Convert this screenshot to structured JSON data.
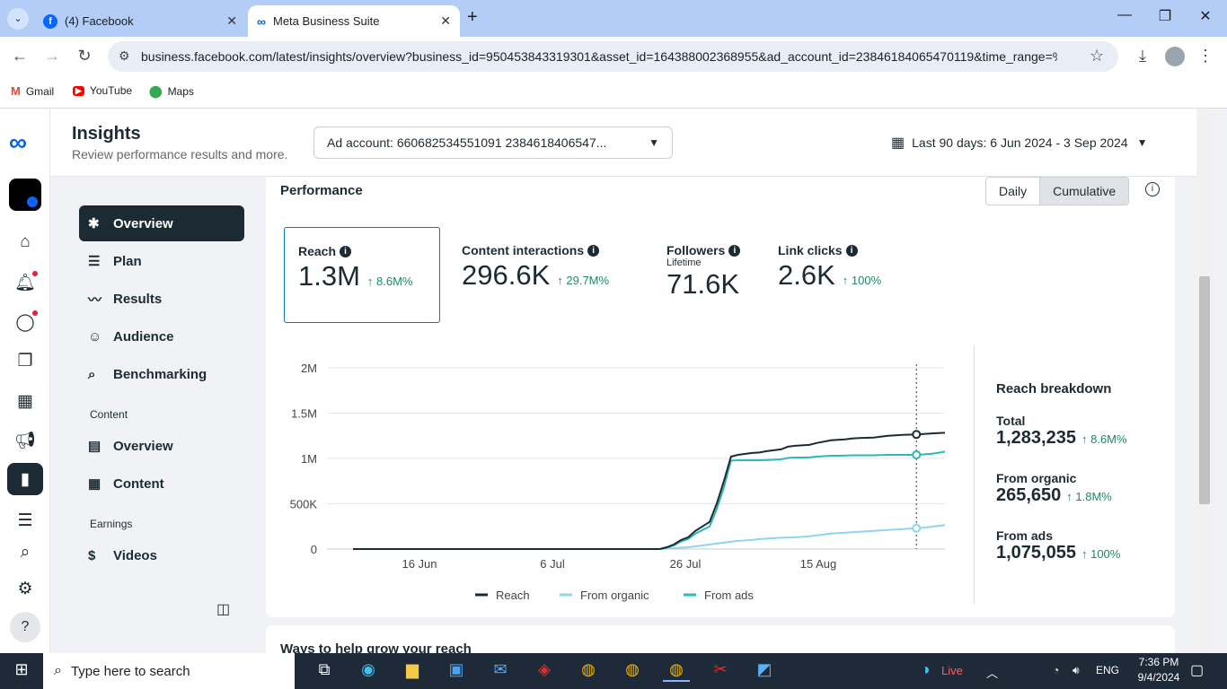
{
  "browser": {
    "tabs": [
      {
        "title": "(4) Facebook",
        "icon": "facebook-icon"
      },
      {
        "title": "Meta Business Suite",
        "icon": "meta-icon"
      }
    ],
    "url": "business.facebook.com/latest/insights/overview?business_id=950453843319301&asset_id=164388002368955&ad_account_id=23846184065470119&time_range=%25...",
    "bookmarks": [
      "Gmail",
      "YouTube",
      "Maps"
    ]
  },
  "header": {
    "title": "Insights",
    "subtitle": "Review performance results and more.",
    "ad_account": "Ad account: 660682534551091 2384618406547...",
    "date_range": "Last 90 days: 6 Jun 2024 - 3 Sep 2024"
  },
  "sidenav": {
    "items": [
      {
        "label": "Overview",
        "icon": "overview-icon"
      },
      {
        "label": "Plan",
        "icon": "plan-icon"
      },
      {
        "label": "Results",
        "icon": "results-icon"
      },
      {
        "label": "Audience",
        "icon": "audience-icon"
      },
      {
        "label": "Benchmarking",
        "icon": "benchmarking-icon"
      }
    ],
    "content_section": "Content",
    "content_items": [
      {
        "label": "Overview",
        "icon": "content-overview-icon"
      },
      {
        "label": "Content",
        "icon": "content-table-icon"
      }
    ],
    "earnings_section": "Earnings",
    "earnings_items": [
      {
        "label": "Videos",
        "icon": "dollar-icon"
      }
    ]
  },
  "performance": {
    "title": "Performance",
    "toggle": [
      "Daily",
      "Cumulative"
    ],
    "selected_toggle": "Cumulative",
    "metrics": [
      {
        "label": "Reach",
        "value": "1.3M",
        "delta": "↑ 8.6M%",
        "sub": ""
      },
      {
        "label": "Content interactions",
        "value": "296.6K",
        "delta": "↑ 29.7M%",
        "sub": ""
      },
      {
        "label": "Followers",
        "value": "71.6K",
        "delta": "",
        "sub": "Lifetime"
      },
      {
        "label": "Link clicks",
        "value": "2.6K",
        "delta": "↑ 100%",
        "sub": ""
      }
    ]
  },
  "chart_data": {
    "type": "line",
    "yticks": [
      "2M",
      "1.5M",
      "1M",
      "500K",
      "0"
    ],
    "ytick_values": [
      2000000,
      1500000,
      1000000,
      500000,
      0
    ],
    "xticks": [
      "16 Jun",
      "6 Jul",
      "26 Jul",
      "15 Aug"
    ],
    "ylim": [
      0,
      2000000
    ],
    "legend": [
      "Reach",
      "From organic",
      "From ads"
    ],
    "legend_placement": "bottom",
    "series": [
      {
        "name": "Reach",
        "color": "#1c2b33",
        "values": [
          0,
          0,
          0,
          0,
          0,
          0,
          0,
          0,
          0,
          0,
          0,
          0,
          0,
          0,
          0,
          0,
          0,
          0,
          0,
          0,
          0,
          0,
          0,
          0,
          0,
          0,
          0,
          0,
          0,
          0,
          0,
          0,
          0,
          0,
          0,
          0,
          0,
          0,
          0,
          0,
          0,
          0,
          0,
          0,
          20000,
          50000,
          100000,
          130000,
          200000,
          250000,
          300000,
          500000,
          750000,
          1020000,
          1040000,
          1050000,
          1060000,
          1065000,
          1080000,
          1090000,
          1100000,
          1130000,
          1140000,
          1145000,
          1150000,
          1170000,
          1185000,
          1200000,
          1205000,
          1210000,
          1220000,
          1225000,
          1228000,
          1230000,
          1240000,
          1250000,
          1255000,
          1260000,
          1262000,
          1265000,
          1270000,
          1275000,
          1280000,
          1283235
        ]
      },
      {
        "name": "From organic",
        "color": "#8dd6ee",
        "values": [
          0,
          0,
          0,
          0,
          0,
          0,
          0,
          0,
          0,
          0,
          0,
          0,
          0,
          0,
          0,
          0,
          0,
          0,
          0,
          0,
          0,
          0,
          0,
          0,
          0,
          0,
          0,
          0,
          0,
          0,
          0,
          0,
          0,
          0,
          0,
          0,
          0,
          0,
          0,
          0,
          0,
          0,
          0,
          0,
          5000,
          10000,
          15000,
          20000,
          30000,
          40000,
          50000,
          60000,
          70000,
          80000,
          90000,
          95000,
          100000,
          110000,
          115000,
          120000,
          125000,
          128000,
          130000,
          135000,
          140000,
          150000,
          160000,
          170000,
          175000,
          180000,
          185000,
          190000,
          195000,
          200000,
          205000,
          210000,
          215000,
          220000,
          225000,
          230000,
          235000,
          245000,
          255000,
          265650
        ]
      },
      {
        "name": "From ads",
        "color": "#2fb8b1",
        "values": [
          0,
          0,
          0,
          0,
          0,
          0,
          0,
          0,
          0,
          0,
          0,
          0,
          0,
          0,
          0,
          0,
          0,
          0,
          0,
          0,
          0,
          0,
          0,
          0,
          0,
          0,
          0,
          0,
          0,
          0,
          0,
          0,
          0,
          0,
          0,
          0,
          0,
          0,
          0,
          0,
          0,
          0,
          0,
          0,
          15000,
          40000,
          85000,
          110000,
          170000,
          210000,
          250000,
          440000,
          680000,
          975000,
          980000,
          980000,
          980000,
          980000,
          982000,
          985000,
          990000,
          1005000,
          1010000,
          1010000,
          1012000,
          1020000,
          1025000,
          1030000,
          1030000,
          1032000,
          1035000,
          1035000,
          1035000,
          1035000,
          1038000,
          1040000,
          1040000,
          1040000,
          1040000,
          1040000,
          1045000,
          1050000,
          1060000,
          1075055
        ]
      }
    ]
  },
  "breakdown": {
    "title": "Reach breakdown",
    "rows": [
      {
        "label": "Total",
        "value": "1,283,235",
        "delta": "↑ 8.6M%"
      },
      {
        "label": "From organic",
        "value": "265,650",
        "delta": "↑ 1.8M%"
      },
      {
        "label": "From ads",
        "value": "1,075,055",
        "delta": "↑ 100%"
      }
    ]
  },
  "section2": {
    "title": "Ways to help grow your reach"
  },
  "taskbar": {
    "search_placeholder": "Type here to search",
    "weather": "Live",
    "lang": "ENG",
    "time": "7:36 PM",
    "date": "9/4/2024"
  }
}
